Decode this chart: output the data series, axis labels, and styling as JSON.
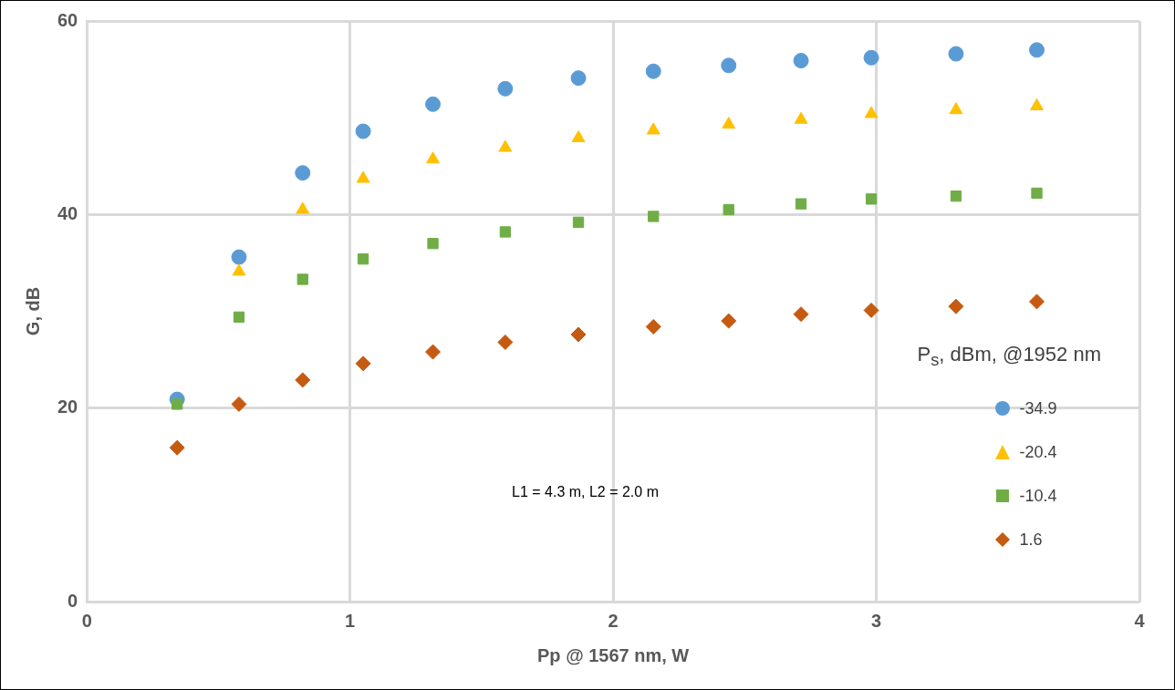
{
  "chart_data": {
    "type": "scatter",
    "xlabel": "Pp @ 1567 nm, W",
    "ylabel": "G, dB",
    "legend_title": "P$_{s}$, dBm, @1952 nm",
    "annotations": [
      "L1 = 4.3 m, L2 = 2.0 m"
    ],
    "x": [
      0.343,
      0.578,
      0.82,
      1.05,
      1.315,
      1.59,
      1.868,
      2.153,
      2.439,
      2.714,
      2.981,
      3.303,
      3.61
    ],
    "series": [
      {
        "name": "-34.9",
        "color": "#5b9bd5",
        "marker": "circle",
        "values": [
          20.9,
          35.6,
          44.3,
          48.6,
          51.4,
          53.0,
          54.1,
          54.8,
          55.4,
          55.9,
          56.2,
          56.6,
          57.0
        ]
      },
      {
        "name": "-20.4",
        "color": "#ffc000",
        "marker": "triangle",
        "values": [
          null,
          34.1,
          40.5,
          43.7,
          45.7,
          46.9,
          47.9,
          48.7,
          49.3,
          49.8,
          50.4,
          50.8,
          51.2
        ]
      },
      {
        "name": "-10.4",
        "color": "#70ad47",
        "marker": "square",
        "values": [
          20.4,
          29.4,
          33.3,
          35.4,
          37.0,
          38.2,
          39.2,
          39.8,
          40.5,
          41.1,
          41.6,
          41.9,
          42.2
        ]
      },
      {
        "name": "1.6",
        "color": "#c55a11",
        "marker": "diamond",
        "values": [
          15.9,
          20.4,
          22.9,
          24.6,
          25.8,
          26.8,
          27.6,
          28.4,
          29.0,
          29.7,
          30.1,
          30.5,
          31.0
        ]
      }
    ],
    "xlim": [
      0,
      4
    ],
    "xticks": [
      0,
      1,
      2,
      3,
      4
    ],
    "ylim": [
      0,
      60
    ],
    "yticks": [
      0,
      20,
      40,
      60
    ],
    "grid": true,
    "legend": "right"
  }
}
